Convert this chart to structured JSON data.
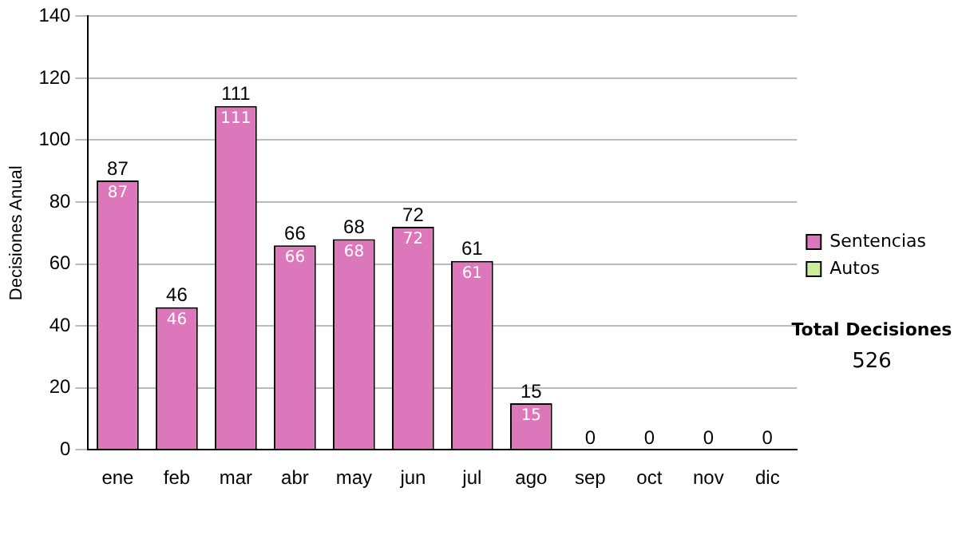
{
  "chart_data": {
    "type": "bar",
    "ylabel": "Decisiones Anual",
    "categories": [
      "ene",
      "feb",
      "mar",
      "abr",
      "may",
      "jun",
      "jul",
      "ago",
      "sep",
      "oct",
      "nov",
      "dic"
    ],
    "series": [
      {
        "name": "Sentencias",
        "color": "#dd77bb",
        "values": [
          87,
          46,
          111,
          66,
          68,
          72,
          61,
          15,
          0,
          0,
          0,
          0
        ],
        "value_labels": [
          "87",
          "46",
          "111",
          "66",
          "68",
          "72",
          "61",
          "15",
          null,
          null,
          null,
          null
        ]
      },
      {
        "name": "Autos",
        "color": "#ccee99",
        "values": [
          0,
          0,
          0,
          0,
          0,
          0,
          0,
          0,
          0,
          0,
          0,
          0
        ]
      }
    ],
    "stacked": true,
    "ylim": [
      0,
      140
    ],
    "yticks": [
      0,
      20,
      40,
      60,
      80,
      100,
      120,
      140
    ],
    "grid": "y",
    "legend": "right",
    "totals": [
      "87",
      "46",
      "111",
      "66",
      "68",
      "72",
      "61",
      "15",
      "0",
      "0",
      "0",
      "0"
    ],
    "annotations": [
      "Total Decisiones",
      "526"
    ]
  }
}
